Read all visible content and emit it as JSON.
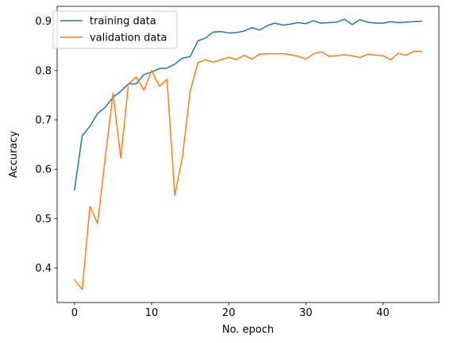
{
  "chart_data": {
    "type": "line",
    "xlabel": "No. epoch",
    "ylabel": "Accuracy",
    "xlim": [
      -2.25,
      47.25
    ],
    "ylim": [
      0.33,
      0.93
    ],
    "xticks": [
      0,
      10,
      20,
      30,
      40
    ],
    "yticks": [
      0.4,
      0.5,
      0.6,
      0.7,
      0.8,
      0.9
    ],
    "xtick_labels": [
      "0",
      "10",
      "20",
      "30",
      "40"
    ],
    "ytick_labels": [
      "0.4",
      "0.5",
      "0.6",
      "0.7",
      "0.8",
      "0.9"
    ],
    "grid": false,
    "legend_position": "top-left",
    "x": [
      0,
      1,
      2,
      3,
      4,
      5,
      6,
      7,
      8,
      9,
      10,
      11,
      12,
      13,
      14,
      15,
      16,
      17,
      18,
      19,
      20,
      21,
      22,
      23,
      24,
      25,
      26,
      27,
      28,
      29,
      30,
      31,
      32,
      33,
      34,
      35,
      36,
      37,
      38,
      39,
      40,
      41,
      42,
      43,
      44,
      45
    ],
    "series": [
      {
        "name": "training data",
        "color": "#1f77b4",
        "values": [
          0.558,
          0.668,
          0.687,
          0.713,
          0.726,
          0.746,
          0.758,
          0.773,
          0.773,
          0.792,
          0.797,
          0.804,
          0.805,
          0.813,
          0.825,
          0.828,
          0.86,
          0.866,
          0.878,
          0.879,
          0.876,
          0.877,
          0.88,
          0.887,
          0.882,
          0.891,
          0.896,
          0.892,
          0.894,
          0.897,
          0.895,
          0.901,
          0.896,
          0.897,
          0.898,
          0.904,
          0.893,
          0.903,
          0.898,
          0.896,
          0.896,
          0.899,
          0.897,
          0.898,
          0.899,
          0.9
        ]
      },
      {
        "name": "validation data",
        "color": "#ff7f0e",
        "values": [
          0.376,
          0.356,
          0.525,
          0.49,
          0.625,
          0.754,
          0.623,
          0.773,
          0.787,
          0.76,
          0.8,
          0.768,
          0.782,
          0.547,
          0.625,
          0.758,
          0.816,
          0.822,
          0.817,
          0.822,
          0.827,
          0.822,
          0.831,
          0.823,
          0.833,
          0.834,
          0.834,
          0.834,
          0.832,
          0.829,
          0.823,
          0.834,
          0.838,
          0.829,
          0.83,
          0.832,
          0.83,
          0.826,
          0.833,
          0.831,
          0.83,
          0.822,
          0.835,
          0.831,
          0.839,
          0.839
        ]
      }
    ]
  }
}
